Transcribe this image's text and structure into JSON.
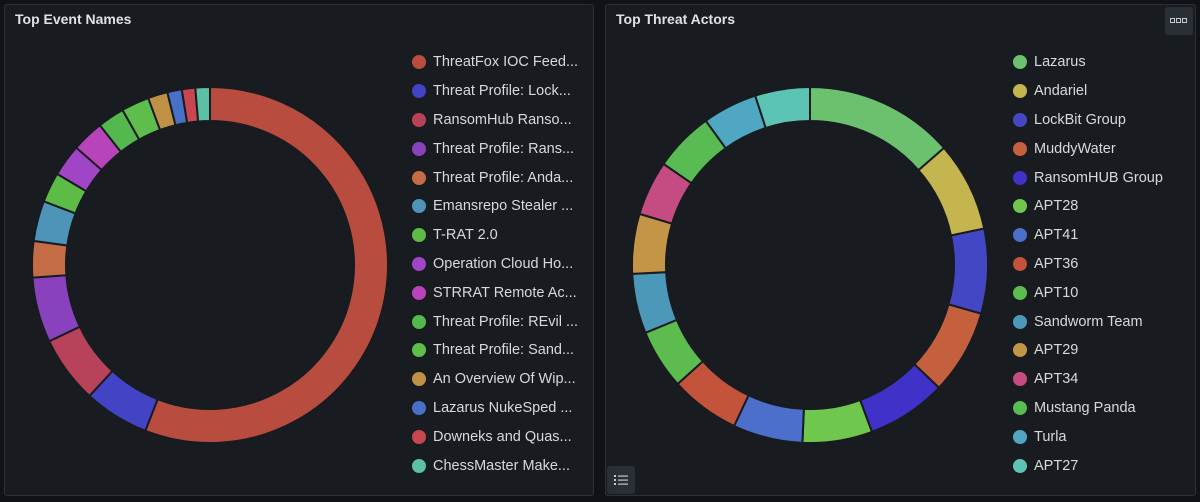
{
  "chart_data": [
    {
      "type": "pie",
      "title": "Top Event Names",
      "labels": [
        "ThreatFox IOC Feed...",
        "Threat Profile: Lock...",
        "RansomHub Ranso...",
        "Threat Profile: Rans...",
        "Threat Profile: Anda...",
        "Emansrepo Stealer ...",
        "T-RAT 2.0",
        "Operation Cloud Ho...",
        "STRRAT Remote Ac...",
        "Threat Profile: REvil ...",
        "Threat Profile: Sand...",
        "An Overview Of Wip...",
        "Lazarus NukeSped ...",
        "Downeks and Quas...",
        "ChessMaster Make..."
      ],
      "values": [
        59.5,
        6.3,
        6.5,
        6.3,
        3.5,
        3.9,
        2.9,
        3.1,
        3.1,
        2.6,
        2.7,
        1.9,
        1.4,
        1.3,
        1.4
      ],
      "colors": [
        "#b84c3e",
        "#4343c6",
        "#b8425a",
        "#8842be",
        "#c46c45",
        "#4d94b8",
        "#5cbc46",
        "#9f45c6",
        "#b844bc",
        "#53b84e",
        "#5ebe4b",
        "#c09144",
        "#4870c8",
        "#c84650",
        "#5bc0a6"
      ],
      "legend": "right"
    },
    {
      "type": "pie",
      "title": "Top Threat Actors",
      "labels": [
        "Lazarus",
        "Andariel",
        "LockBit Group",
        "MuddyWater",
        "RansomHUB Group",
        "APT28",
        "APT41",
        "APT36",
        "APT10",
        "Sandworm Team",
        "APT29",
        "APT34",
        "Mustang Panda",
        "Turla",
        "APT27"
      ],
      "values": [
        15.0,
        9.0,
        8.5,
        8.5,
        8.0,
        7.0,
        7.0,
        7.0,
        6.0,
        6.0,
        6.0,
        5.5,
        6.0,
        5.5,
        5.5
      ],
      "colors": [
        "#6cc16e",
        "#c4b54f",
        "#4447c4",
        "#c4603e",
        "#4032c8",
        "#6fc74e",
        "#4b6fca",
        "#c4533b",
        "#5cbc4e",
        "#4b98b8",
        "#c49546",
        "#c44c83",
        "#58bc53",
        "#4fa7c4",
        "#5cc4b4"
      ],
      "legend": "right"
    }
  ]
}
